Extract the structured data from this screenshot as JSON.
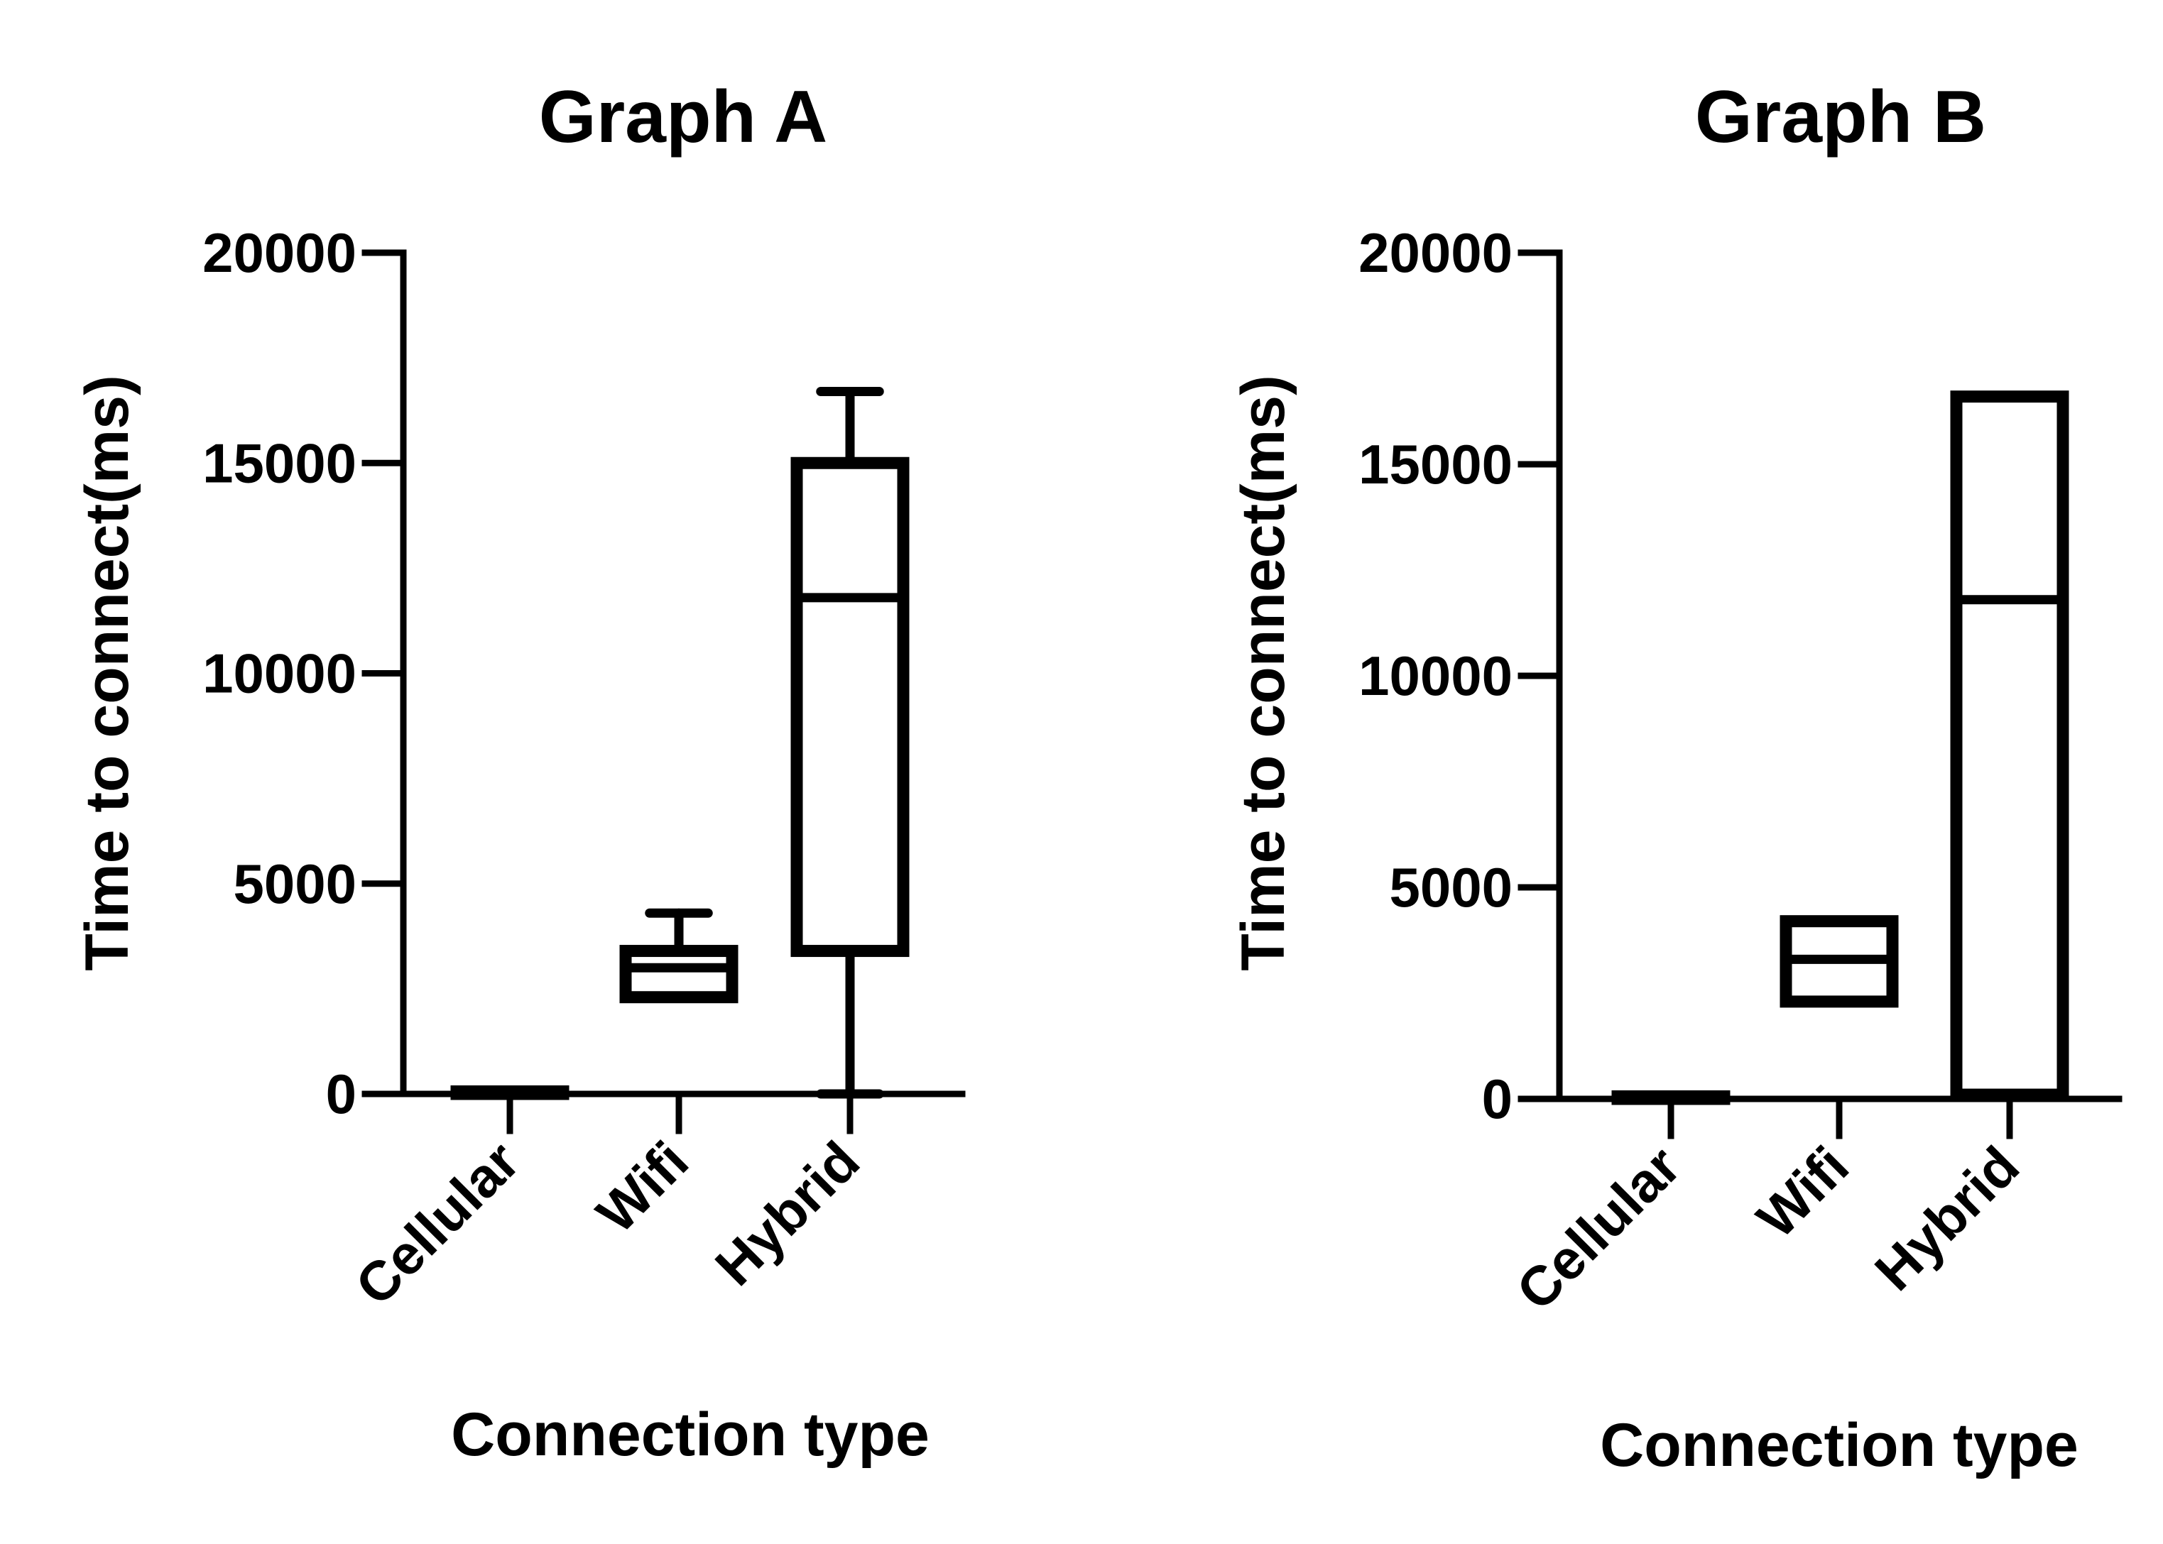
{
  "chart_data": [
    {
      "type": "box",
      "title": "Graph A",
      "xlabel": "Connection type",
      "ylabel": "Time to connect(ms)",
      "ylim": [
        0,
        20000
      ],
      "yticks": [
        "0",
        "5000",
        "10000",
        "15000",
        "20000"
      ],
      "categories": [
        "Cellular",
        "Wifi",
        "Hybrid"
      ],
      "boxes": [
        {
          "min": 0,
          "q1": 0,
          "median": 30,
          "q3": 60,
          "max": 90
        },
        {
          "min": 2300,
          "q1": 2300,
          "median": 3000,
          "q3": 3400,
          "max": 4300
        },
        {
          "min": 0,
          "q1": 3400,
          "median": 11800,
          "q3": 15000,
          "max": 16700
        }
      ]
    },
    {
      "type": "box",
      "title": "Graph B",
      "xlabel": "Connection type",
      "ylabel": "Time to connect(ms)",
      "ylim": [
        0,
        20000
      ],
      "yticks": [
        "0",
        "5000",
        "10000",
        "15000",
        "20000"
      ],
      "categories": [
        "Cellular",
        "Wifi",
        "Hybrid"
      ],
      "boxes": [
        {
          "min": 0,
          "q1": 0,
          "median": 30,
          "q3": 60,
          "max": 60
        },
        {
          "min": 2300,
          "q1": 2300,
          "median": 3300,
          "q3": 4200,
          "max": 4200
        },
        {
          "min": 100,
          "q1": 100,
          "median": 11800,
          "q3": 16600,
          "max": 16600
        }
      ]
    }
  ]
}
